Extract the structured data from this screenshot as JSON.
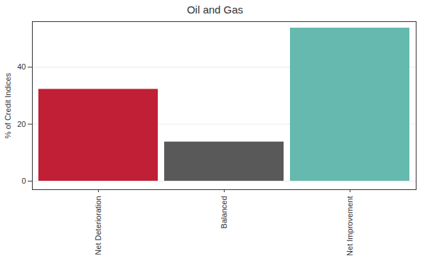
{
  "chart_data": {
    "type": "bar",
    "title": "Oil and Gas",
    "y_label": "% of Credit Indices",
    "categories": [
      "Net Deterioration",
      "Balanced",
      "Net Improvement"
    ],
    "values": [
      32.25,
      13.75,
      53.75
    ],
    "colors": [
      "#c01f35",
      "#595959",
      "#66b9ae"
    ],
    "ylim": [
      -3,
      56
    ],
    "yticks": [
      0,
      20,
      40
    ],
    "grid": true
  }
}
